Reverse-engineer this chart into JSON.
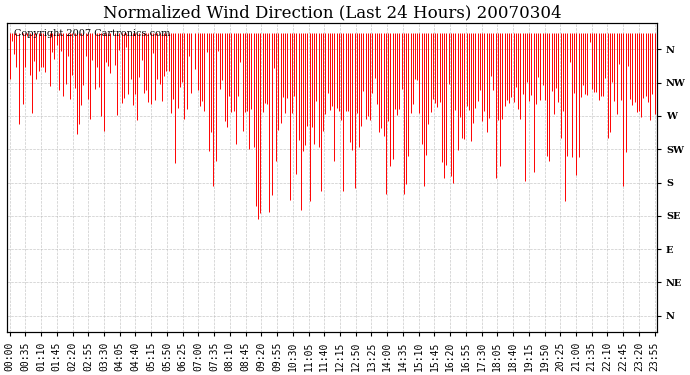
{
  "title": "Normalized Wind Direction (Last 24 Hours) 20070304",
  "copyright_text": "Copyright 2007 Cartronics.com",
  "line_color": "#FF0000",
  "background_color": "#FFFFFF",
  "plot_bg_color": "#FFFFFF",
  "grid_color": "#BBBBBB",
  "ytick_labels": [
    "N",
    "NW",
    "W",
    "SW",
    "S",
    "SE",
    "E",
    "NE",
    "N"
  ],
  "ytick_values": [
    9,
    8,
    7,
    6,
    5,
    4,
    3,
    2,
    1
  ],
  "ylim": [
    0.5,
    9.8
  ],
  "xtick_labels": [
    "00:00",
    "00:35",
    "01:10",
    "01:45",
    "02:20",
    "02:55",
    "03:30",
    "04:05",
    "04:40",
    "05:15",
    "05:50",
    "06:25",
    "07:00",
    "07:35",
    "08:10",
    "08:45",
    "09:20",
    "09:55",
    "10:30",
    "11:05",
    "11:40",
    "12:15",
    "12:50",
    "13:25",
    "14:00",
    "14:35",
    "15:10",
    "15:45",
    "16:20",
    "16:55",
    "17:30",
    "18:05",
    "18:40",
    "19:15",
    "19:50",
    "20:25",
    "21:00",
    "21:35",
    "22:10",
    "22:45",
    "23:20",
    "23:55"
  ],
  "title_fontsize": 12,
  "copyright_fontsize": 7,
  "tick_fontsize": 7,
  "seed": 123
}
